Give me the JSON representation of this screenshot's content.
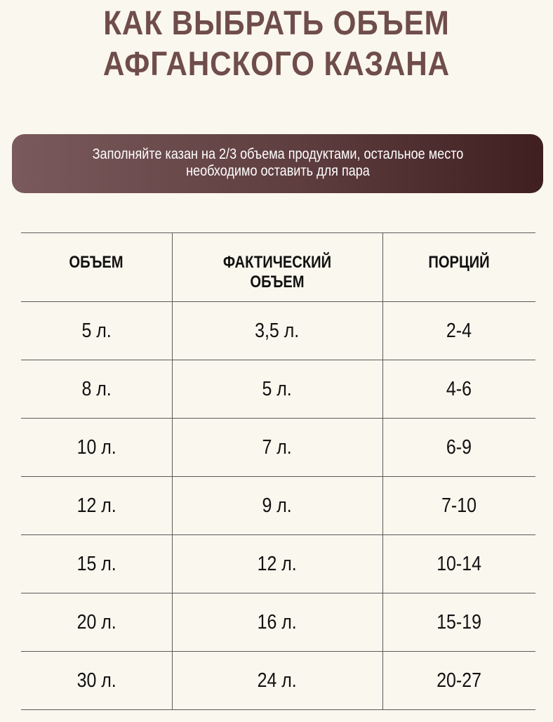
{
  "title": {
    "line1": "КАК ВЫБРАТЬ  ОБЪЕМ",
    "line2": "АФГАНСКОГО КАЗАНА"
  },
  "banner": {
    "line1": "Заполняйте казан на 2/3 объема продуктами, остальное место",
    "line2": "необходимо оставить для пара"
  },
  "table": {
    "headers": [
      "ОБЪЕМ",
      "ФАКТИЧЕСКИЙ ОБЪЕМ",
      "ПОРЦИЙ"
    ],
    "rows": [
      [
        "5 л.",
        "3,5 л.",
        "2-4"
      ],
      [
        "8 л.",
        "5 л.",
        "4-6"
      ],
      [
        "10 л.",
        "7 л.",
        "6-9"
      ],
      [
        "12 л.",
        "9 л.",
        "7-10"
      ],
      [
        "15 л.",
        "12 л.",
        "10-14"
      ],
      [
        "20 л.",
        "16 л.",
        "15-19"
      ],
      [
        "30 л.",
        "24 л.",
        "20-27"
      ]
    ]
  },
  "colors": {
    "background": "#faf7ee",
    "title": "#6f4d4a",
    "banner_start": "#7a5a5c",
    "banner_end": "#3f1f1f",
    "rule": "#5a5a5a"
  }
}
